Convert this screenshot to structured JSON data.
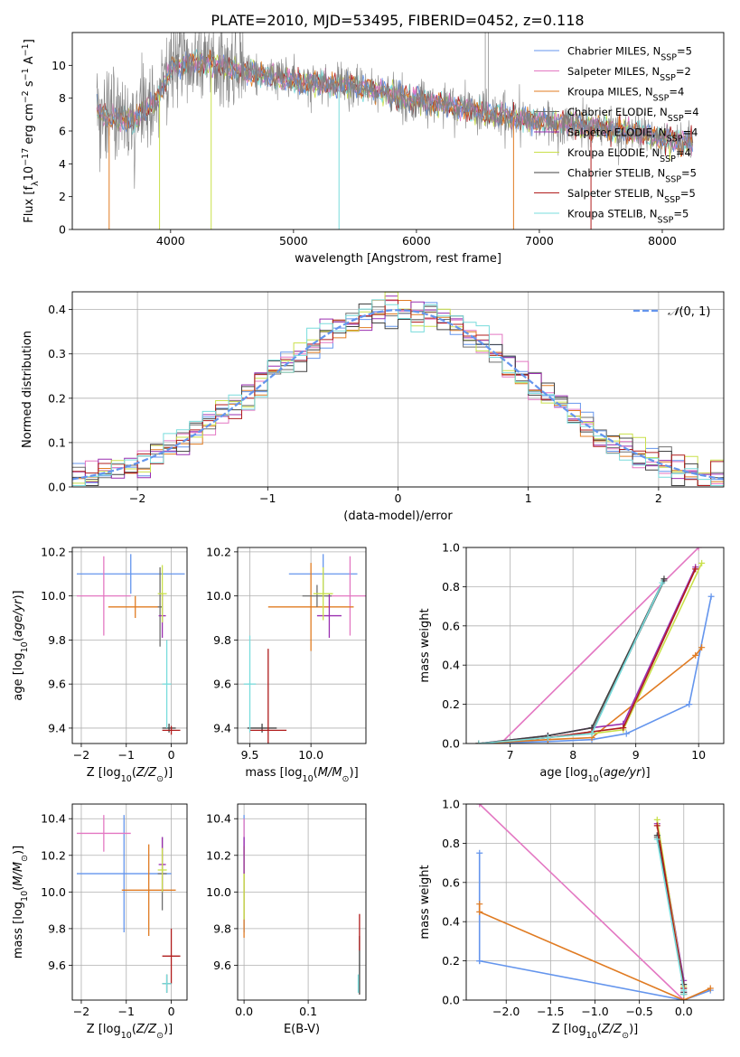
{
  "figure_title": "PLATE=2010, MJD=53495, FIBERID=0452, z=0.118",
  "colors": {
    "chabrier_miles": "#6495ed",
    "salpeter_miles": "#e377c2",
    "kroupa_miles": "#e07b22",
    "chabrier_elodie": "#6e6e6e",
    "salpeter_elodie": "#9a2fb0",
    "kroupa_elodie": "#c9e04a",
    "chabrier_stelib": "#404040",
    "salpeter_stelib": "#b01c1c",
    "kroupa_stelib": "#78dcdc",
    "gaussian": "#6495ed"
  },
  "chart_data": [
    {
      "id": "spectrum",
      "type": "line",
      "xlabel": "wavelength [Angstrom, rest frame]",
      "ylabel": "Flux [f_λ10^-17 erg cm^-2 s^-1 A^-1]",
      "xlim": [
        3200,
        8500
      ],
      "ylim": [
        0,
        12
      ],
      "xticks": [
        4000,
        5000,
        6000,
        7000,
        8000
      ],
      "yticks": [
        0,
        2,
        4,
        6,
        8,
        10
      ],
      "grid": false,
      "legend_position": "top-right",
      "legend": [
        {
          "label": "Chabrier MILES, N_SSP=5",
          "color_key": "chabrier_miles"
        },
        {
          "label": "Salpeter MILES, N_SSP=2",
          "color_key": "salpeter_miles"
        },
        {
          "label": "Kroupa MILES, N_SSP=4",
          "color_key": "kroupa_miles"
        },
        {
          "label": "Chabrier ELODIE, N_SSP=4",
          "color_key": "chabrier_elodie"
        },
        {
          "label": "Salpeter ELODIE, N_SSP=4",
          "color_key": "salpeter_elodie"
        },
        {
          "label": "Kroupa ELODIE, N_SSP=4",
          "color_key": "kroupa_elodie"
        },
        {
          "label": "Chabrier STELIB, N_SSP=5",
          "color_key": "chabrier_stelib"
        },
        {
          "label": "Salpeter STELIB, N_SSP=5",
          "color_key": "salpeter_stelib"
        },
        {
          "label": "Kroupa STELIB, N_SSP=5",
          "color_key": "kroupa_stelib"
        }
      ],
      "continuum": {
        "x": [
          3400,
          3500,
          3700,
          3900,
          4000,
          4200,
          4500,
          5000,
          5500,
          6000,
          6500,
          7000,
          7500,
          8000,
          8200
        ],
        "y": [
          7.3,
          6.8,
          6.6,
          8.0,
          9.8,
          10.2,
          9.8,
          9.0,
          8.7,
          7.9,
          7.2,
          6.6,
          6.2,
          5.6,
          5.3
        ]
      },
      "emission_spikes": [
        {
          "x": 6560,
          "y": 12
        },
        {
          "x": 6585,
          "y": 12
        },
        {
          "x": 4862,
          "y": 9.5
        },
        {
          "x": 6720,
          "y": 8.5
        }
      ],
      "model_dips": [
        {
          "x": 3500,
          "y": 0,
          "color_key": "kroupa_miles"
        },
        {
          "x": 3910,
          "y": 0,
          "color_key": "kroupa_elodie"
        },
        {
          "x": 4330,
          "y": 0,
          "color_key": "kroupa_elodie"
        },
        {
          "x": 5370,
          "y": 0,
          "color_key": "kroupa_stelib"
        },
        {
          "x": 6790,
          "y": 0,
          "color_key": "kroupa_miles"
        },
        {
          "x": 7420,
          "y": 0,
          "color_key": "salpeter_stelib"
        }
      ]
    },
    {
      "id": "residuals",
      "type": "histogram",
      "xlabel": "(data-model)/error",
      "ylabel": "Normed distribution",
      "xlim": [
        -2.5,
        2.5
      ],
      "ylim": [
        0,
        0.44
      ],
      "xticks": [
        -2,
        -1,
        0,
        1,
        2
      ],
      "yticks": [
        0.0,
        0.1,
        0.2,
        0.3,
        0.4
      ],
      "grid": true,
      "legend_position": "top-right",
      "legend": [
        {
          "label": "N(0,1)",
          "color_key": "gaussian",
          "dashed": true
        }
      ],
      "bin_width": 0.1,
      "gaussian": {
        "mu": 0,
        "sigma": 1
      }
    },
    {
      "id": "age-vs-Z",
      "type": "errorbar",
      "xlabel": "Z [log10(Z/Z⊙)]",
      "ylabel": "age  [log10(age/yr)]",
      "xlim": [
        -2.2,
        0.35
      ],
      "ylim": [
        9.33,
        10.22
      ],
      "xticks": [
        -2,
        -1,
        0
      ],
      "yticks": [
        9.4,
        9.6,
        9.8,
        10.0,
        10.2
      ],
      "grid": true,
      "points": [
        {
          "color_key": "chabrier_miles",
          "x": -0.9,
          "xerr": 1.2,
          "y": 10.1,
          "yerr": 0.09
        },
        {
          "color_key": "salpeter_miles",
          "x": -1.5,
          "xerr": 0.6,
          "y": 10.0,
          "yerr": 0.18
        },
        {
          "color_key": "kroupa_miles",
          "x": -0.8,
          "xerr": 0.6,
          "y": 9.95,
          "yerr": 0.05
        },
        {
          "color_key": "chabrier_elodie",
          "x": -0.25,
          "xerr": 0.05,
          "y": 9.95,
          "yerr": 0.18
        },
        {
          "color_key": "salpeter_elodie",
          "x": -0.2,
          "xerr": 0.08,
          "y": 9.91,
          "yerr": 0.1
        },
        {
          "color_key": "kroupa_elodie",
          "x": -0.2,
          "xerr": 0.1,
          "y": 10.01,
          "yerr": 0.13
        },
        {
          "color_key": "chabrier_stelib",
          "x": -0.05,
          "xerr": 0.15,
          "y": 9.4,
          "yerr": 0.02
        },
        {
          "color_key": "salpeter_stelib",
          "x": 0.0,
          "xerr": 0.2,
          "y": 9.39,
          "yerr": 0.02
        },
        {
          "color_key": "kroupa_stelib",
          "x": -0.1,
          "xerr": 0.1,
          "y": 9.6,
          "yerr": 0.2
        }
      ]
    },
    {
      "id": "age-vs-mass",
      "type": "errorbar",
      "xlabel": "mass [log10(M/M⊙)]",
      "ylabel": "",
      "xlim": [
        9.4,
        10.45
      ],
      "ylim": [
        9.33,
        10.22
      ],
      "xticks": [
        9.5,
        10.0
      ],
      "yticks": [
        9.4,
        9.6,
        9.8,
        10.0,
        10.2
      ],
      "grid": true,
      "points": [
        {
          "color_key": "chabrier_miles",
          "x": 10.1,
          "xerr": 0.28,
          "y": 10.1,
          "yerr": 0.09
        },
        {
          "color_key": "salpeter_miles",
          "x": 10.32,
          "xerr": 0.2,
          "y": 10.0,
          "yerr": 0.18
        },
        {
          "color_key": "kroupa_miles",
          "x": 10.0,
          "xerr": 0.35,
          "y": 9.95,
          "yerr": 0.2
        },
        {
          "color_key": "chabrier_elodie",
          "x": 10.05,
          "xerr": 0.12,
          "y": 10.0,
          "yerr": 0.05
        },
        {
          "color_key": "salpeter_elodie",
          "x": 10.15,
          "xerr": 0.1,
          "y": 9.91,
          "yerr": 0.1
        },
        {
          "color_key": "kroupa_elodie",
          "x": 10.1,
          "xerr": 0.08,
          "y": 10.01,
          "yerr": 0.12
        },
        {
          "color_key": "chabrier_stelib",
          "x": 9.6,
          "xerr": 0.12,
          "y": 9.4,
          "yerr": 0.02
        },
        {
          "color_key": "salpeter_stelib",
          "x": 9.65,
          "xerr": 0.15,
          "y": 9.39,
          "yerr": 0.37
        },
        {
          "color_key": "kroupa_stelib",
          "x": 9.5,
          "xerr": 0.05,
          "y": 9.6,
          "yerr": 0.22
        }
      ]
    },
    {
      "id": "massweight-vs-age",
      "type": "line",
      "xlabel": "age  [log10(age/yr)]",
      "ylabel": "mass weight",
      "xlim": [
        6.3,
        10.4
      ],
      "ylim": [
        0,
        1
      ],
      "xticks": [
        7,
        8,
        9,
        10
      ],
      "yticks": [
        0.0,
        0.2,
        0.4,
        0.6,
        0.8,
        1.0
      ],
      "grid": true,
      "series": [
        {
          "color_key": "chabrier_miles",
          "x": [
            6.5,
            7.6,
            8.3,
            8.85,
            9.85,
            10.2
          ],
          "y": [
            0,
            0.01,
            0.02,
            0.05,
            0.2,
            0.75
          ]
        },
        {
          "color_key": "salpeter_miles",
          "x": [
            6.85,
            10.0
          ],
          "y": [
            0,
            1.0
          ]
        },
        {
          "color_key": "kroupa_miles",
          "x": [
            6.5,
            7.6,
            8.3,
            9.95,
            10.05
          ],
          "y": [
            0,
            0.02,
            0.03,
            0.45,
            0.49
          ]
        },
        {
          "color_key": "chabrier_elodie",
          "x": [
            6.5,
            7.6,
            8.3,
            9.45
          ],
          "y": [
            0,
            0.03,
            0.06,
            0.83
          ]
        },
        {
          "color_key": "salpeter_elodie",
          "x": [
            6.5,
            7.6,
            8.3,
            8.8,
            9.95
          ],
          "y": [
            0,
            0.04,
            0.08,
            0.1,
            0.9
          ]
        },
        {
          "color_key": "kroupa_elodie",
          "x": [
            6.5,
            7.6,
            8.3,
            8.8,
            10.05
          ],
          "y": [
            0,
            0.03,
            0.05,
            0.07,
            0.92
          ]
        },
        {
          "color_key": "chabrier_stelib",
          "x": [
            6.5,
            7.6,
            8.3,
            9.45
          ],
          "y": [
            0,
            0.04,
            0.08,
            0.84
          ]
        },
        {
          "color_key": "salpeter_stelib",
          "x": [
            6.5,
            7.6,
            8.3,
            8.8,
            9.95
          ],
          "y": [
            0,
            0.03,
            0.06,
            0.08,
            0.89
          ]
        },
        {
          "color_key": "kroupa_stelib",
          "x": [
            6.5,
            7.6,
            8.3,
            9.42
          ],
          "y": [
            0,
            0.03,
            0.05,
            0.82
          ]
        }
      ]
    },
    {
      "id": "mass-vs-Z",
      "type": "errorbar",
      "xlabel": "Z [log10(Z/Z⊙)]",
      "ylabel": "mass [log10(M/M⊙)]",
      "xlim": [
        -2.2,
        0.35
      ],
      "ylim": [
        9.41,
        10.48
      ],
      "xticks": [
        -2,
        -1,
        0
      ],
      "yticks": [
        9.6,
        9.8,
        10.0,
        10.2,
        10.4
      ],
      "grid": true,
      "points": [
        {
          "color_key": "chabrier_miles",
          "x": -1.05,
          "xerr": 1.05,
          "y": 10.1,
          "yerr": 0.32
        },
        {
          "color_key": "salpeter_miles",
          "x": -1.5,
          "xerr": 0.6,
          "y": 10.32,
          "yerr": 0.1
        },
        {
          "color_key": "kroupa_miles",
          "x": -0.5,
          "xerr": 0.6,
          "y": 10.01,
          "yerr": 0.25
        },
        {
          "color_key": "chabrier_elodie",
          "x": -0.2,
          "xerr": 0.1,
          "y": 10.1,
          "yerr": 0.2
        },
        {
          "color_key": "salpeter_elodie",
          "x": -0.2,
          "xerr": 0.08,
          "y": 10.15,
          "yerr": 0.15
        },
        {
          "color_key": "kroupa_elodie",
          "x": -0.2,
          "xerr": 0.1,
          "y": 10.12,
          "yerr": 0.12
        },
        {
          "color_key": "chabrier_stelib",
          "x": -0.1,
          "xerr": 0.1,
          "y": 9.5,
          "yerr": 0.05
        },
        {
          "color_key": "salpeter_stelib",
          "x": 0.0,
          "xerr": 0.2,
          "y": 9.65,
          "yerr": 0.15
        },
        {
          "color_key": "kroupa_stelib",
          "x": -0.1,
          "xerr": 0.1,
          "y": 9.5,
          "yerr": 0.05
        }
      ]
    },
    {
      "id": "mass-vs-ebv",
      "type": "errorbar",
      "xlabel": "E(B-V)",
      "ylabel": "",
      "xlim": [
        -0.01,
        0.19
      ],
      "ylim": [
        9.41,
        10.48
      ],
      "xticks": [
        0.0,
        0.1
      ],
      "yticks": [
        9.6,
        9.8,
        10.0,
        10.2,
        10.4
      ],
      "grid": true,
      "points": [
        {
          "color_key": "chabrier_miles",
          "x": 0.0,
          "xerr": 0.0,
          "y": 10.1,
          "yerr": 0.32
        },
        {
          "color_key": "salpeter_miles",
          "x": 0.0,
          "xerr": 0.0,
          "y": 10.3,
          "yerr": 0.1
        },
        {
          "color_key": "kroupa_miles",
          "x": 0.0,
          "xerr": 0.0,
          "y": 10.0,
          "yerr": 0.25
        },
        {
          "color_key": "kroupa_elodie",
          "x": 0.0,
          "xerr": 0.0,
          "y": 10.05,
          "yerr": 0.2
        },
        {
          "color_key": "salpeter_elodie",
          "x": 0.0,
          "xerr": 0.0,
          "y": 10.2,
          "yerr": 0.1
        },
        {
          "color_key": "chabrier_stelib",
          "x": 0.18,
          "xerr": 0.0,
          "y": 9.6,
          "yerr": 0.16
        },
        {
          "color_key": "salpeter_stelib",
          "x": 0.18,
          "xerr": 0.0,
          "y": 9.78,
          "yerr": 0.1
        },
        {
          "color_key": "kroupa_stelib",
          "x": 0.178,
          "xerr": 0.0,
          "y": 9.5,
          "yerr": 0.05
        }
      ]
    },
    {
      "id": "massweight-vs-Z",
      "type": "line",
      "xlabel": "Z [log10(Z/Z⊙)]",
      "ylabel": "mass weight",
      "xlim": [
        -2.45,
        0.45
      ],
      "ylim": [
        0,
        1
      ],
      "xticks": [
        -2.0,
        -1.5,
        -1.0,
        -0.5,
        0.0
      ],
      "yticks": [
        0.0,
        0.2,
        0.4,
        0.6,
        0.8,
        1.0
      ],
      "grid": true,
      "series": [
        {
          "color_key": "chabrier_miles",
          "x": [
            -2.3,
            -2.3,
            -2.3,
            0.0,
            0.3
          ],
          "y": [
            0.75,
            0.2,
            0.2,
            0.0,
            0.05
          ]
        },
        {
          "color_key": "salpeter_miles",
          "x": [
            -2.3,
            0.0
          ],
          "y": [
            1.0,
            0.0
          ]
        },
        {
          "color_key": "kroupa_miles",
          "x": [
            -2.3,
            -2.3,
            0.0,
            0.3
          ],
          "y": [
            0.49,
            0.45,
            0.0,
            0.06
          ]
        },
        {
          "color_key": "chabrier_elodie",
          "x": [
            -0.3,
            0.0,
            0.0
          ],
          "y": [
            0.83,
            0.06,
            0.03
          ]
        },
        {
          "color_key": "salpeter_elodie",
          "x": [
            -0.3,
            0.0,
            0.0
          ],
          "y": [
            0.9,
            0.1,
            0.04
          ]
        },
        {
          "color_key": "kroupa_elodie",
          "x": [
            -0.3,
            0.0,
            0.0
          ],
          "y": [
            0.92,
            0.07,
            0.03
          ]
        },
        {
          "color_key": "chabrier_stelib",
          "x": [
            -0.3,
            0.0,
            0.0
          ],
          "y": [
            0.84,
            0.08,
            0.04
          ]
        },
        {
          "color_key": "salpeter_stelib",
          "x": [
            -0.3,
            0.0,
            0.0
          ],
          "y": [
            0.89,
            0.06,
            0.03
          ]
        },
        {
          "color_key": "kroupa_stelib",
          "x": [
            -0.3,
            0.0,
            0.0
          ],
          "y": [
            0.82,
            0.05,
            0.03
          ]
        }
      ]
    }
  ]
}
